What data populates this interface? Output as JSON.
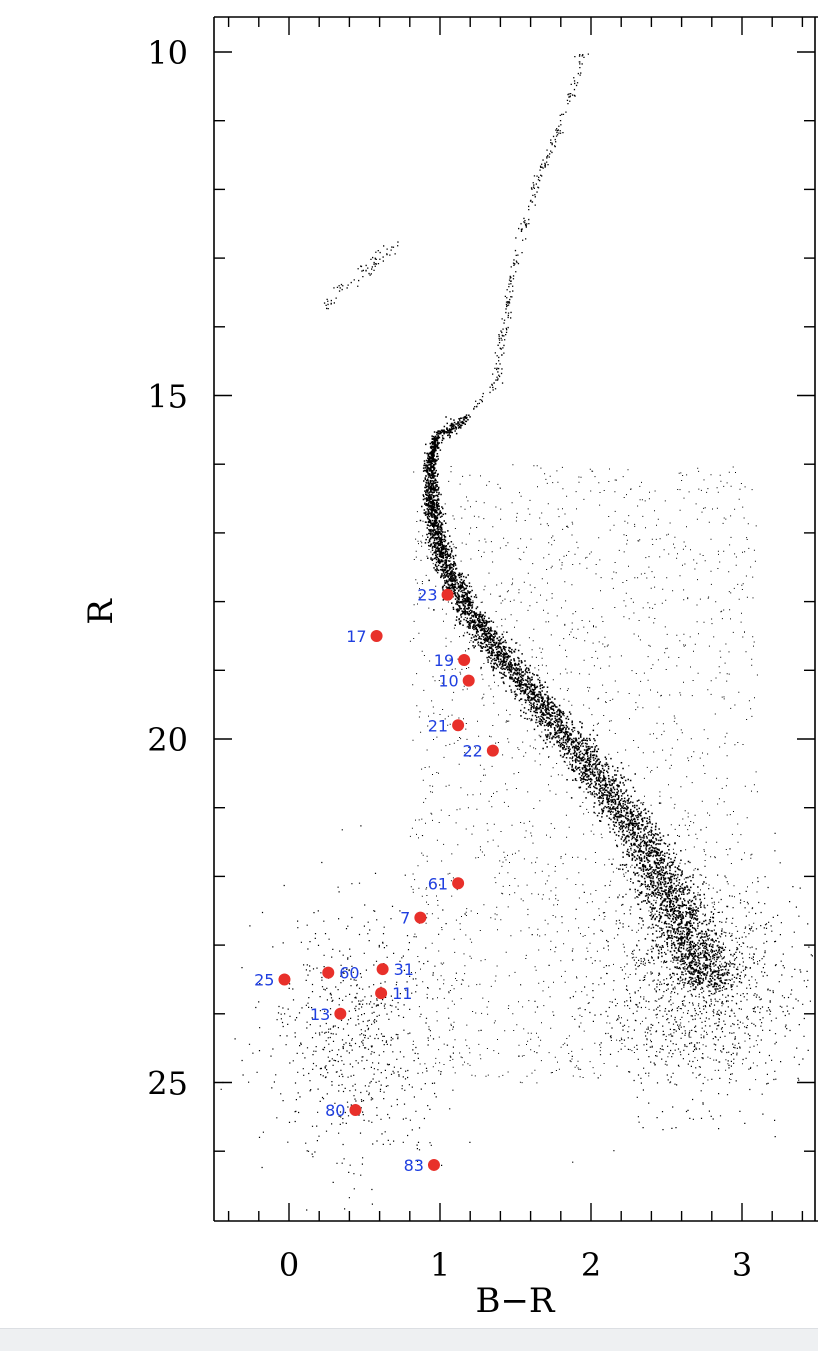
{
  "chart_data": {
    "type": "scatter",
    "title": "",
    "xlabel": "B−R",
    "ylabel": "R",
    "xlim": [
      -0.5,
      3.5
    ],
    "ylim": [
      27.0,
      9.5
    ],
    "y_inverted": true,
    "grid": false,
    "x_ticks": [
      0,
      1,
      2,
      3
    ],
    "x_tick_labels": [
      "0",
      "1",
      "2",
      "3"
    ],
    "y_ticks": [
      10,
      15,
      20,
      25
    ],
    "y_tick_labels": [
      "10",
      "15",
      "20",
      "25"
    ],
    "colors": {
      "field_stars": "#000000",
      "highlighted": "#e8302a",
      "labels": "#1f3fe0"
    },
    "series": [
      {
        "points": [
          {
            "id": "23",
            "x": 1.05,
            "y": 17.9
          },
          {
            "id": "17",
            "x": 0.58,
            "y": 18.5
          },
          {
            "id": "19",
            "x": 1.16,
            "y": 18.85
          },
          {
            "id": "10",
            "x": 1.19,
            "y": 19.15
          },
          {
            "id": "21",
            "x": 1.12,
            "y": 19.8
          },
          {
            "id": "22",
            "x": 1.35,
            "y": 20.17
          },
          {
            "id": "61",
            "x": 1.12,
            "y": 22.1
          },
          {
            "id": "7",
            "x": 0.87,
            "y": 22.6
          },
          {
            "id": "25",
            "x": -0.03,
            "y": 23.5
          },
          {
            "id": "60",
            "x": 0.26,
            "y": 23.4
          },
          {
            "id": "31",
            "x": 0.62,
            "y": 23.35
          },
          {
            "id": "11",
            "x": 0.61,
            "y": 23.7
          },
          {
            "id": "13",
            "x": 0.34,
            "y": 24.0
          },
          {
            "id": "80",
            "x": 0.44,
            "y": 25.4
          },
          {
            "id": "83",
            "x": 0.96,
            "y": 26.2
          }
        ]
      }
    ]
  }
}
